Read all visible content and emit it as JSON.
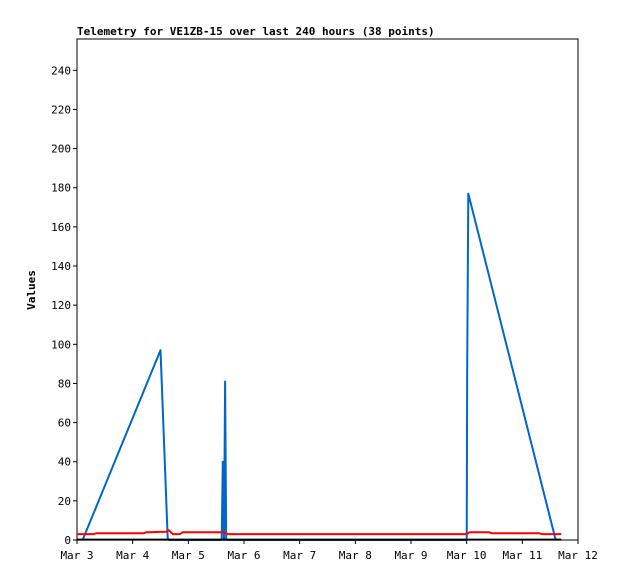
{
  "chart_data": {
    "type": "line",
    "title": "Telemetry for VE1ZB-15 over last 240 hours (38 points)",
    "xlabel": "",
    "ylabel": "Values",
    "x_ticks": [
      "Mar 3",
      "Mar 4",
      "Mar 5",
      "Mar 6",
      "Mar 7",
      "Mar 8",
      "Mar 9",
      "Mar 10",
      "Mar 11",
      "Mar 12"
    ],
    "y_ticks": [
      0,
      20,
      40,
      60,
      80,
      100,
      120,
      140,
      160,
      180,
      200,
      220,
      240
    ],
    "xlim": [
      0,
      9
    ],
    "ylim": [
      0,
      256
    ],
    "grid": false,
    "series": [
      {
        "color": "#0066cc",
        "points": [
          [
            0.1,
            0
          ],
          [
            1.5,
            97
          ],
          [
            1.63,
            1
          ],
          [
            1.65,
            0
          ],
          [
            2.6,
            0
          ],
          [
            2.62,
            40
          ],
          [
            2.64,
            0
          ],
          [
            2.66,
            81
          ],
          [
            2.68,
            0
          ],
          [
            7.0,
            0
          ],
          [
            7.01,
            88
          ],
          [
            7.03,
            177
          ],
          [
            8.6,
            0
          ]
        ]
      },
      {
        "color": "#ff0000",
        "points": [
          [
            0.0,
            3
          ],
          [
            0.3,
            3
          ],
          [
            0.35,
            3.5
          ],
          [
            1.2,
            3.5
          ],
          [
            1.25,
            4
          ],
          [
            1.6,
            4.2
          ],
          [
            1.65,
            5
          ],
          [
            1.72,
            3
          ],
          [
            1.85,
            3
          ],
          [
            1.9,
            4
          ],
          [
            2.65,
            4
          ],
          [
            2.7,
            3
          ],
          [
            7.0,
            3
          ],
          [
            7.05,
            4
          ],
          [
            7.4,
            4
          ],
          [
            7.45,
            3.5
          ],
          [
            8.3,
            3.5
          ],
          [
            8.35,
            3
          ],
          [
            8.7,
            3
          ]
        ]
      },
      {
        "color": "#000000",
        "points": [
          [
            0.0,
            0.2
          ],
          [
            8.7,
            0.2
          ]
        ]
      }
    ]
  }
}
